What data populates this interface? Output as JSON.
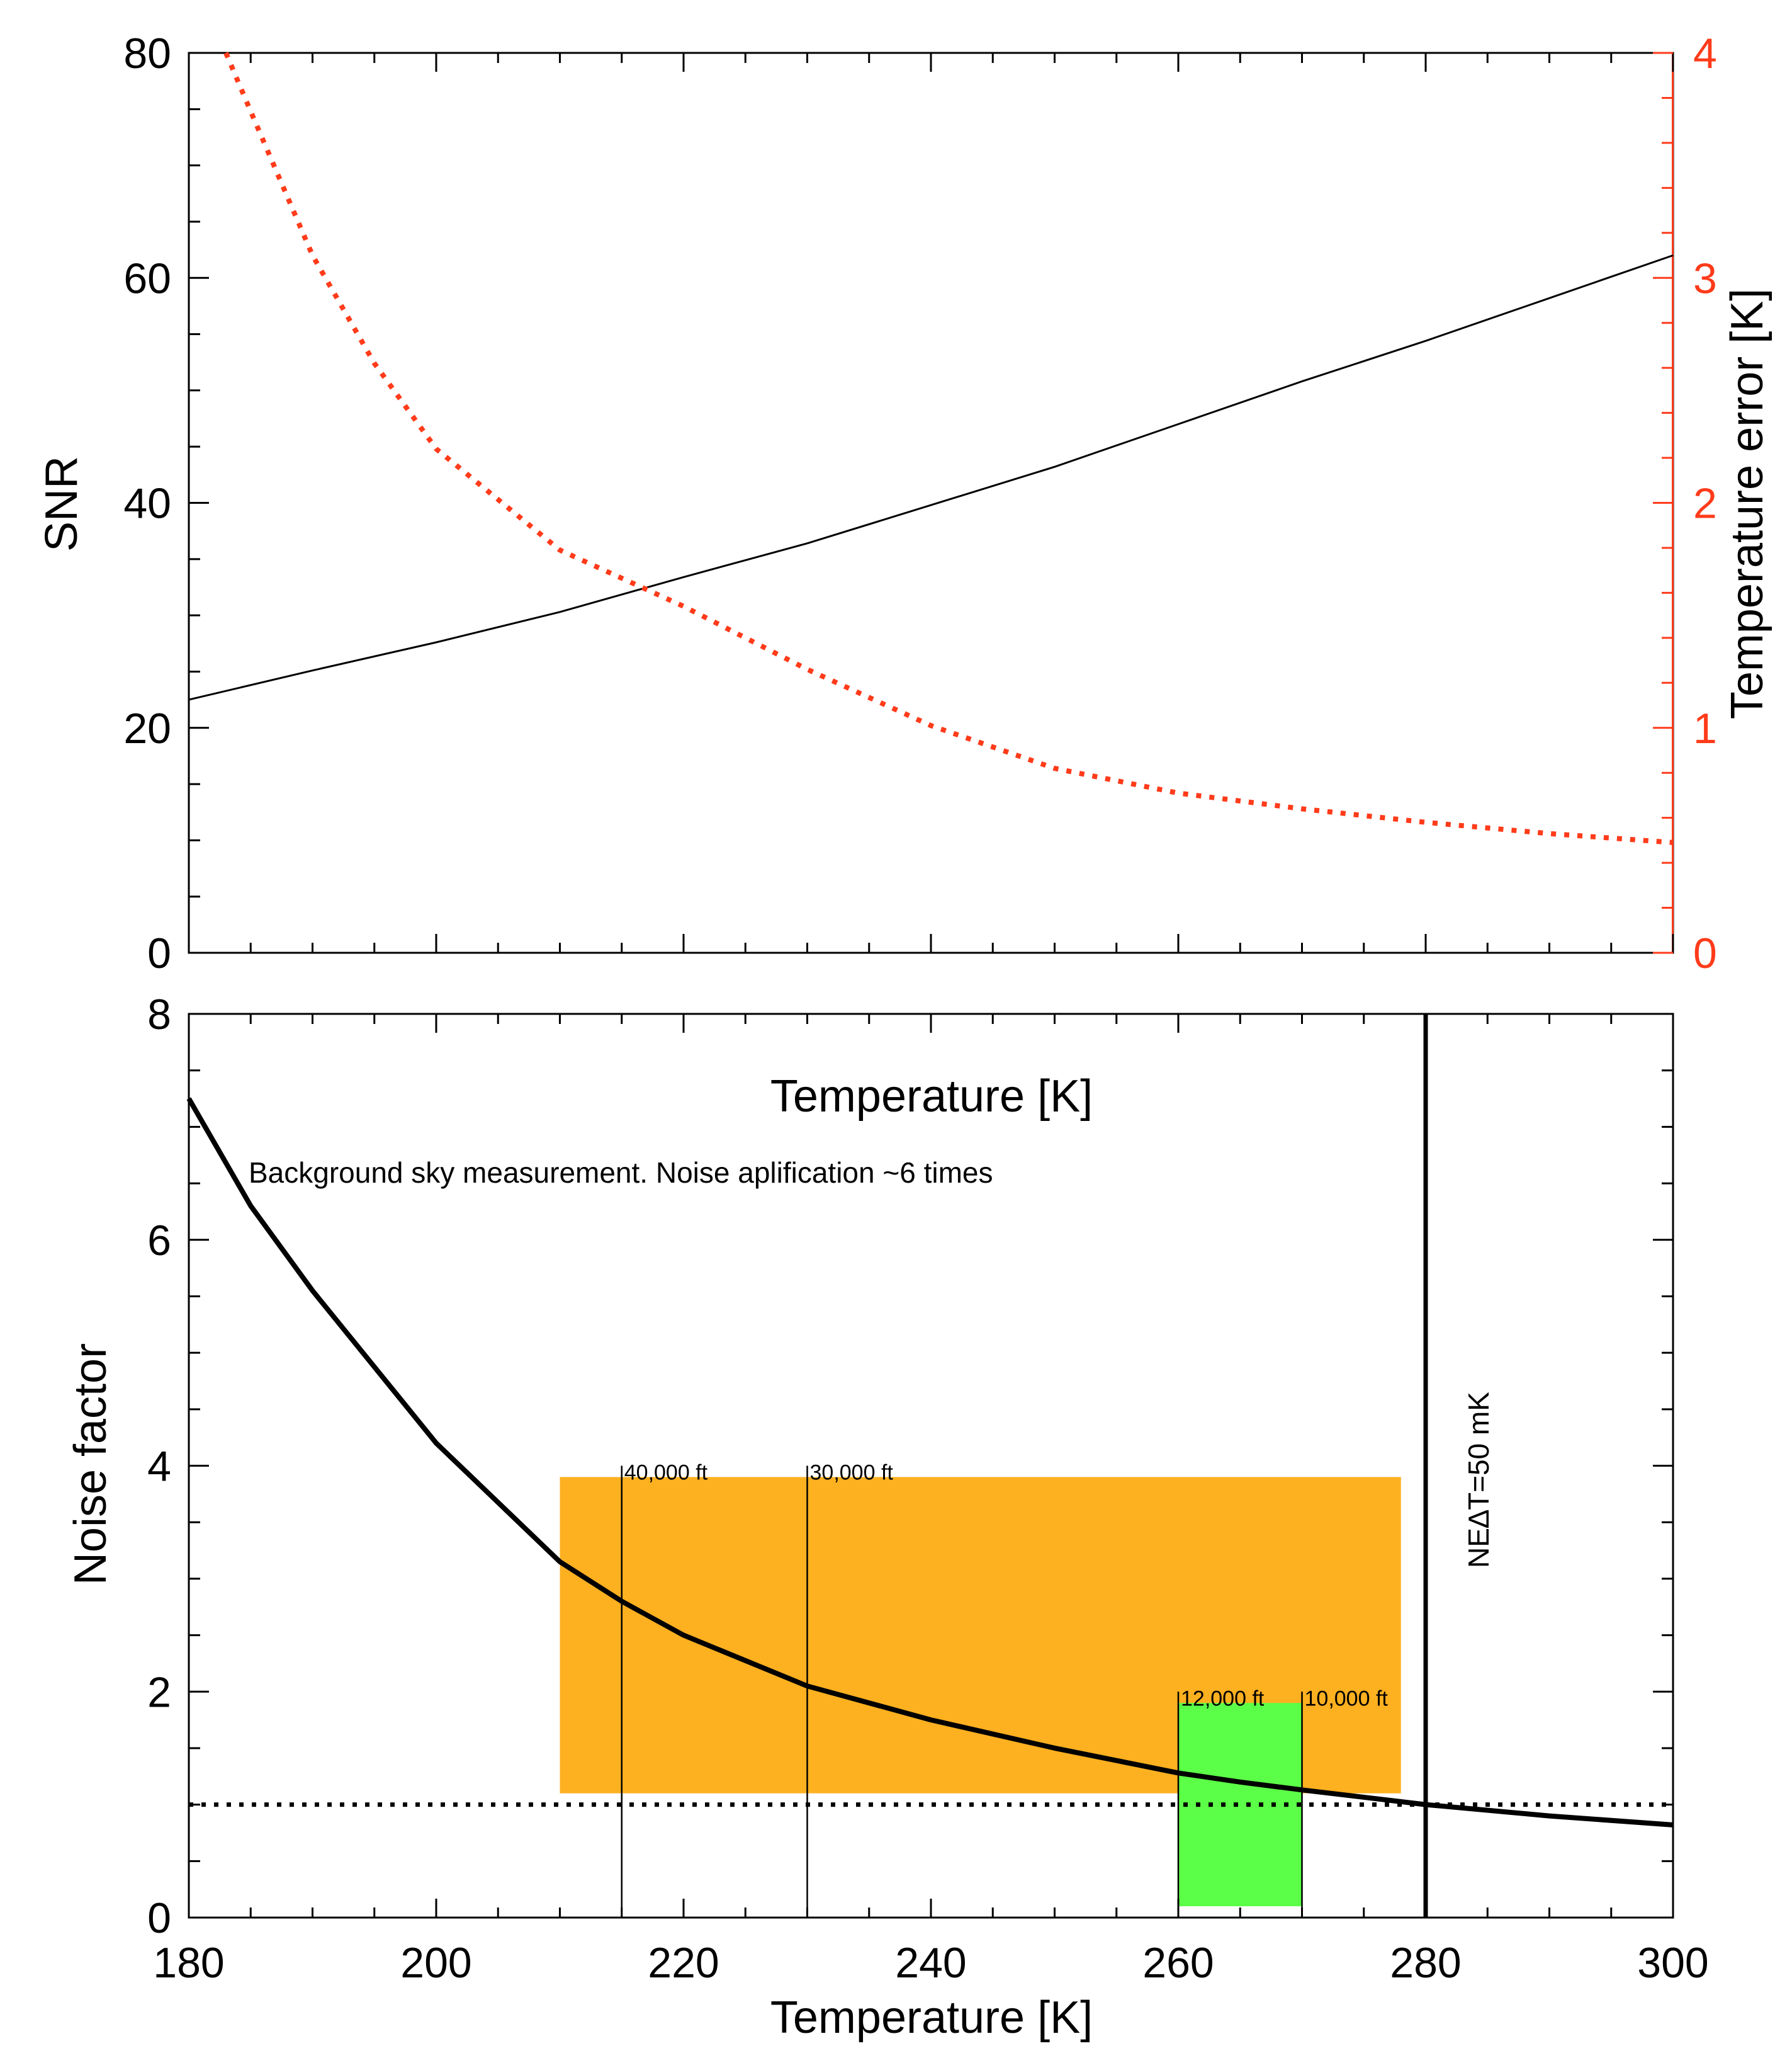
{
  "chart_data": [
    {
      "type": "line",
      "panel": "top",
      "x": [
        180,
        190,
        200,
        210,
        220,
        230,
        240,
        250,
        260,
        270,
        280,
        290,
        300
      ],
      "xlim": [
        180,
        300
      ],
      "xticks": [
        180,
        200,
        220,
        240,
        260,
        280,
        300
      ],
      "ylabel": "SNR",
      "ylim": [
        0,
        80
      ],
      "yticks": [
        0,
        20,
        40,
        60,
        80
      ],
      "ylabel_right": "Temperature error [K]",
      "ylim_right": [
        0,
        4
      ],
      "yticks_right": [
        0,
        1,
        2,
        3,
        4
      ],
      "series": [
        {
          "name": "SNR",
          "axis": "left",
          "style": "solid",
          "color": "#000000",
          "values": [
            22.5,
            25.1,
            27.6,
            30.3,
            33.4,
            36.4,
            39.8,
            43.2,
            47.0,
            50.8,
            54.4,
            58.2,
            62.0
          ]
        },
        {
          "name": "Temperature error",
          "axis": "right",
          "style": "dotted",
          "color": "#ff3b1a",
          "x": [
            183,
            185,
            190,
            195,
            200,
            210,
            220,
            230,
            240,
            250,
            260,
            270,
            280,
            290,
            300
          ],
          "values": [
            4.0,
            3.74,
            3.1,
            2.62,
            2.24,
            1.79,
            1.54,
            1.26,
            1.01,
            0.82,
            0.71,
            0.64,
            0.58,
            0.53,
            0.49
          ]
        }
      ]
    },
    {
      "type": "line",
      "panel": "bottom",
      "title": "Temperature [K]",
      "xlabel": "Temperature [K]",
      "ylabel": "Noise factor",
      "xlim": [
        180,
        300
      ],
      "ylim": [
        0,
        8
      ],
      "xticks": [
        180,
        200,
        220,
        240,
        260,
        280,
        300
      ],
      "xtick_labels": [
        "180",
        "200",
        "220",
        "240",
        "260",
        "280",
        "300"
      ],
      "yticks": [
        0,
        2,
        4,
        6,
        8
      ],
      "x": [
        180,
        185,
        190,
        200,
        210,
        215,
        220,
        230,
        240,
        250,
        260,
        265,
        270,
        280,
        290,
        300
      ],
      "series": [
        {
          "name": "Noise factor",
          "style": "solid",
          "color": "#000000",
          "values": [
            7.25,
            6.3,
            5.55,
            4.2,
            3.15,
            2.8,
            2.5,
            2.05,
            1.75,
            1.5,
            1.28,
            1.2,
            1.13,
            1.0,
            0.9,
            0.82
          ]
        }
      ],
      "reference_line": {
        "y": 1.0,
        "style": "dotted"
      },
      "regions": [
        {
          "x0": 210,
          "x1": 278,
          "y0": 1.1,
          "y1": 3.9,
          "color": "#fdb020"
        },
        {
          "x0": 260,
          "x1": 270,
          "y0": 0.1,
          "y1": 1.9,
          "color": "#5cff47"
        }
      ],
      "vlines": [
        {
          "x": 215,
          "label": "40,000 ft",
          "top": 4.0
        },
        {
          "x": 230,
          "label": "30,000 ft",
          "top": 4.0
        },
        {
          "x": 260,
          "label": "12,000 ft",
          "top": 2.0
        },
        {
          "x": 270,
          "label": "10,000 ft",
          "top": 2.0
        }
      ],
      "threshold": {
        "x": 280,
        "label": "NE∆T=50 mK"
      },
      "annotation": "Background sky measurement.  Noise aplification ~6 times"
    }
  ]
}
